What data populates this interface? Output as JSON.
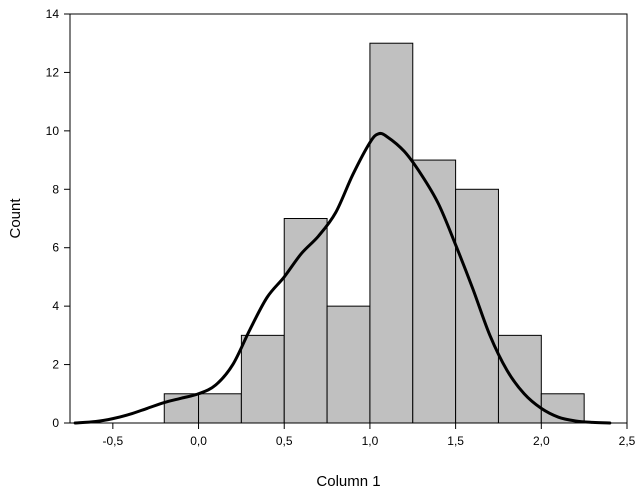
{
  "chart_data": {
    "type": "bar",
    "title": "",
    "xlabel": "Column 1",
    "ylabel": "Count",
    "xlim": [
      -0.75,
      2.5
    ],
    "ylim": [
      0,
      14
    ],
    "grid": false,
    "x_ticks": [
      -0.5,
      0.0,
      0.5,
      1.0,
      1.5,
      2.0,
      2.5
    ],
    "x_tick_labels": [
      "-0,5",
      "0,0",
      "0,5",
      "1,0",
      "1,5",
      "2,0",
      "2,5"
    ],
    "y_ticks": [
      0,
      2,
      4,
      6,
      8,
      10,
      12,
      14
    ],
    "y_tick_labels": [
      "0",
      "2",
      "4",
      "6",
      "8",
      "10",
      "12",
      "14"
    ],
    "bins": [
      {
        "x0": -0.2,
        "x1": 0.0,
        "count": 1
      },
      {
        "x0": 0.0,
        "x1": 0.25,
        "count": 1
      },
      {
        "x0": 0.25,
        "x1": 0.5,
        "count": 3
      },
      {
        "x0": 0.5,
        "x1": 0.75,
        "count": 7
      },
      {
        "x0": 0.75,
        "x1": 1.0,
        "count": 4
      },
      {
        "x0": 1.0,
        "x1": 1.25,
        "count": 13
      },
      {
        "x0": 1.25,
        "x1": 1.5,
        "count": 9
      },
      {
        "x0": 1.5,
        "x1": 1.75,
        "count": 8
      },
      {
        "x0": 1.75,
        "x1": 2.0,
        "count": 3
      },
      {
        "x0": 2.0,
        "x1": 2.25,
        "count": 1
      }
    ],
    "density_curve": {
      "x": [
        -0.72,
        -0.6,
        -0.5,
        -0.4,
        -0.3,
        -0.2,
        -0.1,
        0.0,
        0.1,
        0.2,
        0.3,
        0.4,
        0.5,
        0.6,
        0.7,
        0.8,
        0.9,
        1.0,
        1.05,
        1.1,
        1.2,
        1.3,
        1.4,
        1.5,
        1.6,
        1.7,
        1.8,
        1.9,
        2.0,
        2.1,
        2.2,
        2.3,
        2.4
      ],
      "y": [
        0.0,
        0.05,
        0.15,
        0.3,
        0.5,
        0.7,
        0.85,
        1.0,
        1.3,
        2.0,
        3.2,
        4.3,
        5.0,
        5.8,
        6.4,
        7.2,
        8.5,
        9.6,
        9.9,
        9.8,
        9.3,
        8.5,
        7.5,
        6.1,
        4.6,
        3.0,
        1.8,
        1.0,
        0.5,
        0.2,
        0.07,
        0.02,
        0.0
      ]
    },
    "colors": {
      "bar_fill": "#c0c0c0",
      "bar_stroke": "#000000",
      "curve": "#000000"
    }
  }
}
